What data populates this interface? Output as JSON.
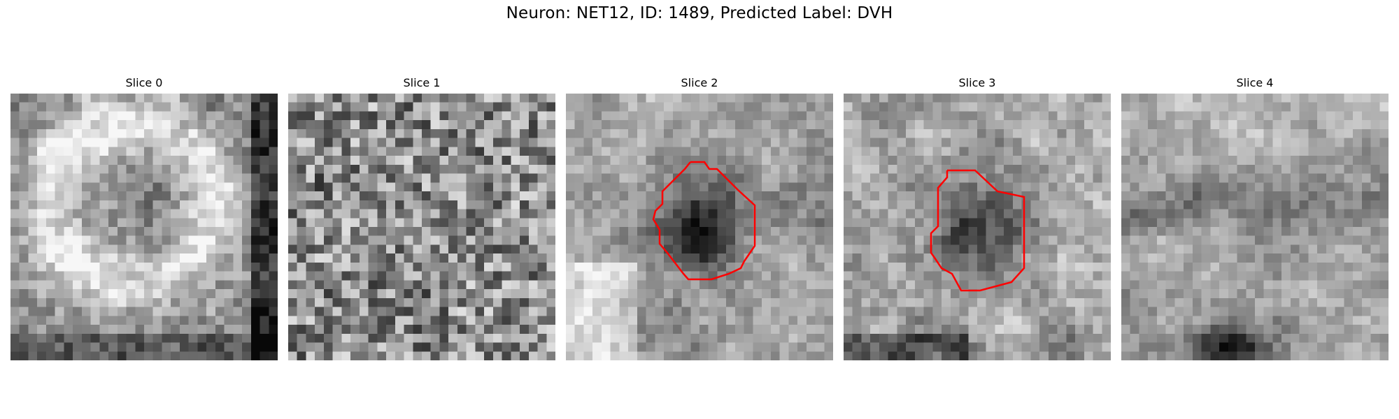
{
  "figure": {
    "title": "Neuron: NET12, ID: 1489, Predicted Label: DVH"
  },
  "panels": [
    {
      "title": "Slice 0",
      "has_contour": false,
      "feature": "ring"
    },
    {
      "title": "Slice 1",
      "has_contour": false,
      "feature": "noise"
    },
    {
      "title": "Slice 2",
      "has_contour": true,
      "feature": "dark-center"
    },
    {
      "title": "Slice 3",
      "has_contour": true,
      "feature": "dark-center-small"
    },
    {
      "title": "Slice 4",
      "has_contour": false,
      "feature": "dark-band-bottom"
    }
  ],
  "style": {
    "contour_color": "#ff0000",
    "colormap": "gray"
  }
}
